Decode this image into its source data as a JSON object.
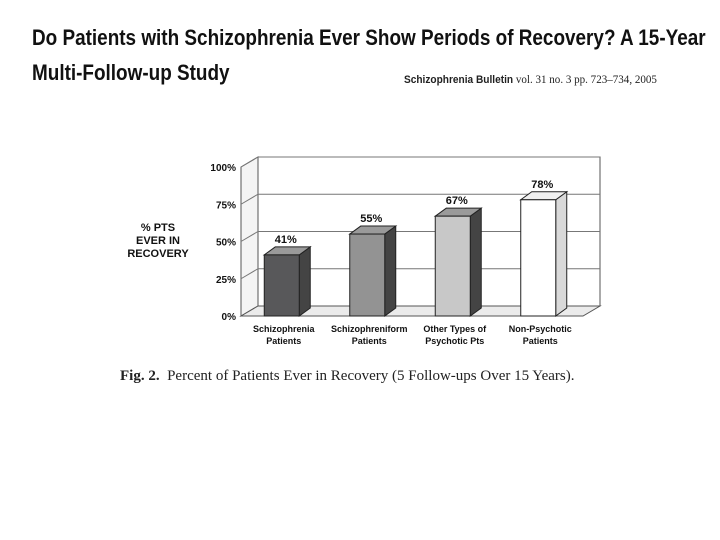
{
  "page": {
    "title_line1": "Do Patients with Schizophrenia Ever Show Periods of Recovery? A 15-Year",
    "title_line2": "Multi-Follow-up Study",
    "journal": "Schizophrenia Bulletin",
    "citation_rest": " vol. 31 no. 3 pp. 723–734, 2005",
    "caption_label": "Fig. 2.",
    "caption_text": "Percent of Patients Ever in Recovery (5 Follow-ups Over 15 Years)."
  },
  "chart_data": {
    "type": "bar",
    "title": "",
    "ylabel": "% PTS EVER IN RECOVERY",
    "ylabel_lines": [
      "% PTS",
      "EVER IN",
      "RECOVERY"
    ],
    "ylim": [
      0,
      100
    ],
    "yticks": [
      0,
      25,
      50,
      75,
      100
    ],
    "ytick_labels": [
      "0%",
      "25%",
      "50%",
      "75%",
      "100%"
    ],
    "grid": true,
    "categories": [
      "Schizophrenia Patients",
      "Schizophreniform Patients",
      "Other Types of Psychotic Pts",
      "Non-Psychotic Patients"
    ],
    "category_lines": [
      [
        "Schizophrenia",
        "Patients"
      ],
      [
        "Schizophreniform",
        "Patients"
      ],
      [
        "Other Types of",
        "Psychotic Pts"
      ],
      [
        "Non-Psychotic",
        "Patients"
      ]
    ],
    "values": [
      41,
      55,
      67,
      78
    ],
    "data_labels": [
      "41%",
      "55%",
      "67%",
      "78%"
    ],
    "bar_colors": [
      "#58585a",
      "#939393",
      "#c8c8c8",
      "#ffffff"
    ]
  }
}
